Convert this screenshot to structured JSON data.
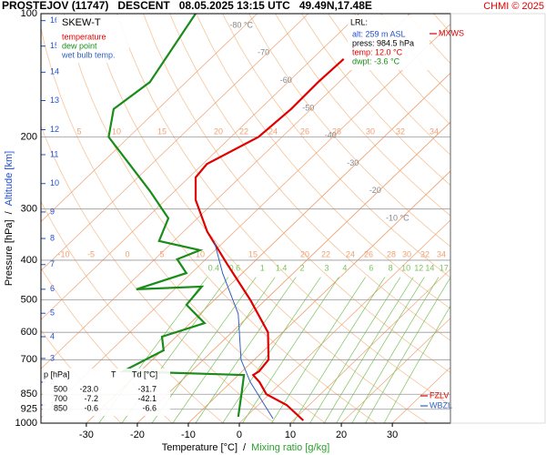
{
  "chart_data": {
    "type": "skewt",
    "title": "PROSTEJOV (11747)   DESCENT   08.05.2025 13:15 UTC   49.49N,17.48E",
    "credit": "CHMI © 2025",
    "diagram_label": "SKEW-T",
    "xlabel": "Temperature [°C]",
    "xlabel_sep": "/",
    "xlabel2": "Mixing ratio [g/kg]",
    "ylabel": "Pressure [hPa]",
    "ylabel_sep": "/",
    "ylabel2": "Altitude [km]",
    "xlim": [
      -38.9,
      41.4
    ],
    "xticks": [
      -30,
      -20,
      -10,
      0,
      10,
      20,
      30
    ],
    "ylim": [
      1000,
      100
    ],
    "yticks": [
      100,
      200,
      300,
      400,
      500,
      600,
      700,
      850,
      925,
      1000
    ],
    "log_y": true,
    "grid": true,
    "alt_ticks": [
      {
        "value": 1,
        "p": 903
      },
      {
        "value": 2,
        "p": 794
      },
      {
        "value": 3,
        "p": 695
      },
      {
        "value": 4,
        "p": 615
      },
      {
        "value": 5,
        "p": 539
      },
      {
        "value": 6,
        "p": 471
      },
      {
        "value": 7,
        "p": 410
      },
      {
        "value": 8,
        "p": 354
      },
      {
        "value": 9,
        "p": 305
      },
      {
        "value": 10,
        "p": 260
      },
      {
        "value": 11,
        "p": 221
      },
      {
        "value": 12,
        "p": 192
      },
      {
        "value": 13,
        "p": 163
      },
      {
        "value": 14,
        "p": 139
      },
      {
        "value": 15,
        "p": 120
      },
      {
        "value": 16,
        "p": 104
      }
    ],
    "isotherm_labels": [
      {
        "value": -80,
        "label": "-80 °C"
      },
      -70,
      -60,
      -50,
      -40,
      -30,
      -20,
      {
        "value": -10,
        "label": "-10 °C"
      }
    ],
    "mixing_ratios": [
      0.4,
      0.6,
      1,
      1.4,
      2,
      3,
      4,
      6,
      8,
      10,
      12,
      14,
      17,
      20,
      25
    ],
    "theta_labels_upper": [
      5,
      10,
      15,
      20,
      22,
      24,
      26,
      28,
      30,
      32,
      34
    ],
    "theta_labels_lower": [
      -10,
      -5,
      0,
      5,
      10,
      15,
      20,
      22,
      24,
      26,
      28,
      30,
      32,
      34
    ],
    "lrl": {
      "title": "LRL:",
      "lines": [
        "alt: 259 m ASL",
        "press: 984.5 hPa",
        "temp: 12.0 °C",
        "dwpt: -3.6 °C"
      ]
    },
    "level_labels": [
      "MXWS",
      "FZLV",
      "WBZL"
    ],
    "table": {
      "header": [
        "p [hPa]",
        "T",
        "Td [°C]"
      ],
      "rows": [
        [
          "500",
          "-23.0",
          "-31.7"
        ],
        [
          "700",
          "-7.2",
          "-42.1"
        ],
        [
          "850",
          "-0.6",
          "-6.6"
        ]
      ]
    },
    "series": [
      {
        "name": "temperature",
        "color": "#e00000",
        "p": [
          985,
          903,
          850,
          794,
          763,
          747,
          700,
          600,
          500,
          409,
          341,
          285,
          251,
          233,
          200,
          171,
          147,
          129
        ],
        "values": [
          12.0,
          5.6,
          -0.6,
          -4.4,
          -7.1,
          -6.7,
          -7.2,
          -12.9,
          -23.0,
          -34.8,
          -45.3,
          -54.1,
          -58.7,
          -59.2,
          -54.6,
          -53.9,
          -54.1,
          -53.8
        ]
      },
      {
        "name": "dew point",
        "color": "#1a8c1a",
        "p": [
          965,
          836,
          763,
          747,
          664,
          615,
          570,
          514,
          464,
          471,
          430,
          398,
          378,
          359,
          316,
          271,
          200,
          171,
          147,
          100
        ],
        "values": [
          -1.5,
          -6.0,
          -8.9,
          -33.4,
          -29.7,
          -32.8,
          -27.2,
          -34.5,
          -35.2,
          -47.5,
          -41.0,
          -45.6,
          -43.0,
          -52.9,
          -55.7,
          -64.9,
          -84.0,
          -88.7,
          -87.1,
          -92.1
        ]
      },
      {
        "name": "wet bulb temp.",
        "color": "#3060c0",
        "p": [
          975,
          794,
          700,
          541,
          430,
          359
        ],
        "values": [
          5.7,
          -6.2,
          -12.6,
          -22.5,
          -33.9,
          -42.1
        ]
      }
    ]
  }
}
